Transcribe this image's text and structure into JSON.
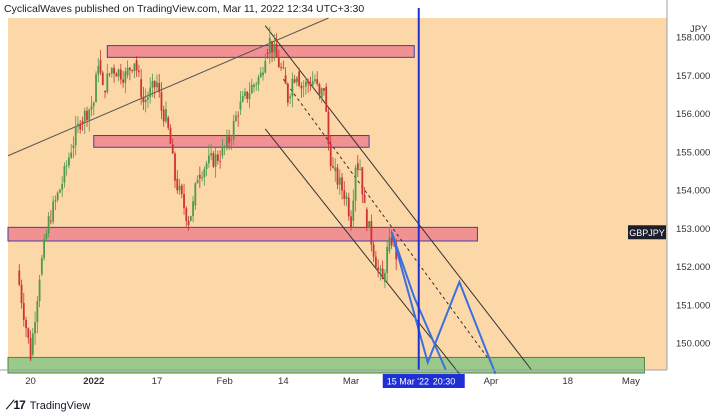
{
  "header": {
    "published": "CyclicalWaves published on TradingView.com, Mar 11, 2022 12:34 UTC+3:30"
  },
  "footer": {
    "brand": "TradingView"
  },
  "colors": {
    "background": "#fcd8a8",
    "zone_red": "#f19191",
    "zone_red_border": "#3f3fa9",
    "zone_green": "#9bc88b",
    "vline": "#1f2fd6",
    "projection": "#3a6fe0",
    "candle_up": "#4d9a4d",
    "candle_down": "#cc3333"
  },
  "chart_data": {
    "type": "candlestick",
    "symbol": "GBPJPY",
    "currency_label": "JPY",
    "last_price_label": "GBPJPY",
    "yaxis": {
      "ticks": [
        150.0,
        151.0,
        152.0,
        153.0,
        154.0,
        155.0,
        156.0,
        157.0,
        158.0
      ],
      "range": [
        149.3,
        158.5
      ]
    },
    "xaxis": {
      "ticks": [
        "20",
        "2022",
        "17",
        "Feb",
        "14",
        "Mar",
        "Apr",
        "18",
        "May"
      ],
      "cursor_label": "15 Mar '22",
      "cursor_time": "20:30"
    },
    "ohlc_path": [
      [
        "2021-12-17",
        151.9
      ],
      [
        "2021-12-20",
        149.7
      ],
      [
        "2021-12-22",
        151.8
      ],
      [
        "2021-12-24",
        153.2
      ],
      [
        "2021-12-27",
        154.2
      ],
      [
        "2021-12-29",
        155.1
      ],
      [
        "2021-12-31",
        155.8
      ],
      [
        "2022-01-03",
        156.3
      ],
      [
        "2022-01-04",
        157.4
      ],
      [
        "2022-01-05",
        156.6
      ],
      [
        "2022-01-07",
        157.2
      ],
      [
        "2022-01-10",
        157.0
      ],
      [
        "2022-01-12",
        157.4
      ],
      [
        "2022-01-13",
        156.9
      ],
      [
        "2022-01-14",
        156.3
      ],
      [
        "2022-01-17",
        156.8
      ],
      [
        "2022-01-18",
        156.1
      ],
      [
        "2022-01-19",
        155.9
      ],
      [
        "2022-01-20",
        155.2
      ],
      [
        "2022-01-21",
        154.3
      ],
      [
        "2022-01-24",
        153.2
      ],
      [
        "2022-01-25",
        153.6
      ],
      [
        "2022-01-26",
        154.4
      ],
      [
        "2022-01-28",
        154.7
      ],
      [
        "2022-01-31",
        154.9
      ],
      [
        "2022-02-02",
        155.3
      ],
      [
        "2022-02-04",
        156.1
      ],
      [
        "2022-02-07",
        156.7
      ],
      [
        "2022-02-09",
        157.0
      ],
      [
        "2022-02-10",
        157.6
      ],
      [
        "2022-02-11",
        157.9
      ],
      [
        "2022-02-14",
        157.0
      ],
      [
        "2022-02-15",
        156.4
      ],
      [
        "2022-02-16",
        156.9
      ],
      [
        "2022-02-17",
        157.1
      ],
      [
        "2022-02-18",
        156.7
      ],
      [
        "2022-02-21",
        156.9
      ],
      [
        "2022-02-22",
        156.4
      ],
      [
        "2022-02-23",
        156.7
      ],
      [
        "2022-02-24",
        155.2
      ],
      [
        "2022-02-25",
        154.5
      ],
      [
        "2022-02-28",
        153.8
      ],
      [
        "2022-03-01",
        153.2
      ],
      [
        "2022-03-02",
        154.7
      ],
      [
        "2022-03-03",
        154.6
      ],
      [
        "2022-03-04",
        153.5
      ],
      [
        "2022-03-07",
        151.9
      ],
      [
        "2022-03-08",
        151.6
      ],
      [
        "2022-03-09",
        152.4
      ],
      [
        "2022-03-10",
        152.7
      ],
      [
        "2022-03-11",
        152.3
      ]
    ],
    "zones": [
      {
        "top": 157.7,
        "bottom": 157.55,
        "from": "2022-01-06",
        "to": "2022-03-15",
        "color": "red"
      },
      {
        "top": 155.35,
        "bottom": 155.2,
        "from": "2022-01-03",
        "to": "2022-03-05",
        "color": "red"
      },
      {
        "top": 152.95,
        "bottom": 152.75,
        "from": "2021-12-15",
        "to": "2022-03-29",
        "color": "red"
      },
      {
        "top": 149.55,
        "bottom": 149.3,
        "from": "2021-12-15",
        "to": "2022-05-05",
        "color": "green"
      }
    ],
    "projection": [
      [
        "2022-03-10",
        152.9
      ],
      [
        "2022-03-18",
        149.5
      ],
      [
        "2022-03-25",
        151.6
      ],
      [
        "2022-04-02",
        149.2
      ]
    ],
    "projection_branch": [
      [
        "2022-03-10",
        152.9
      ],
      [
        "2022-03-15",
        151.2
      ],
      [
        "2022-03-22",
        149.3
      ]
    ]
  }
}
